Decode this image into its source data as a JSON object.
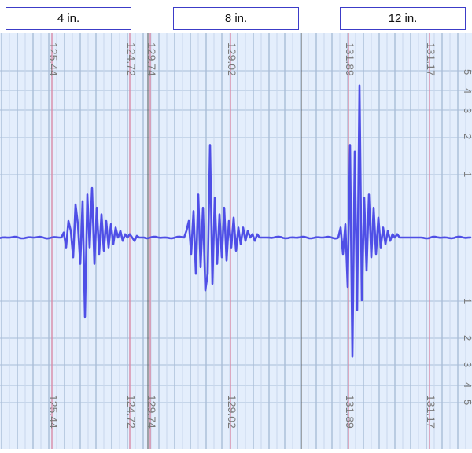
{
  "panel_labels": [
    "4 in.",
    "8 in.",
    "12 in."
  ],
  "colors": {
    "background": "#e4eefc",
    "major_grid": "#a9bdd8",
    "minor_grid": "#c8d6ec",
    "marker_line": "#d98aa6",
    "trace": "#4f4fe6",
    "tick_text": "#7a7a7a",
    "box_border": "#3c3cc8"
  },
  "chart_data": {
    "type": "line",
    "title": "",
    "xlabel": "",
    "ylabel": "",
    "right_axis_ticks": [
      "5",
      "4",
      "3",
      "2",
      "1",
      "1",
      "2",
      "3",
      "4",
      "5"
    ],
    "ylim": [
      -5.5,
      5.5
    ],
    "panels": [
      {
        "label": "4 in.",
        "marker_labels": [
          "125.44",
          "124.72"
        ],
        "pulse": {
          "x": [
            0,
            2,
            4,
            6,
            8,
            10,
            12,
            14,
            16,
            18,
            20,
            22,
            24,
            26,
            28,
            30,
            32,
            34,
            36,
            38,
            40,
            42,
            44,
            46,
            48,
            50,
            52,
            54,
            56,
            58,
            60,
            62,
            64,
            66,
            68,
            70
          ],
          "y": [
            0,
            0.15,
            -0.3,
            0.5,
            0.2,
            -0.6,
            1.0,
            0.4,
            -0.8,
            1.1,
            -2.4,
            1.3,
            -0.3,
            1.5,
            -0.8,
            0.9,
            -0.5,
            0.7,
            -0.4,
            0.5,
            -0.3,
            0.4,
            -0.2,
            0.3,
            0,
            0.2,
            -0.1,
            0.1,
            0,
            0.1,
            0,
            -0.1,
            0.05,
            0,
            0,
            0
          ]
        }
      },
      {
        "label": "8 in.",
        "marker_labels": [
          "129.74",
          "129.02"
        ],
        "pulse": {
          "x": [
            0,
            2,
            4,
            6,
            8,
            10,
            12,
            14,
            16,
            18,
            20,
            22,
            24,
            26,
            28,
            30,
            32,
            34,
            36,
            38,
            40,
            42,
            44,
            46,
            48,
            50,
            52,
            54,
            56,
            58,
            60,
            62,
            64,
            66,
            68,
            70
          ],
          "y": [
            0,
            0.2,
            0.5,
            -0.5,
            0.8,
            -1.1,
            1.3,
            -0.9,
            0.9,
            -1.6,
            -1.1,
            2.8,
            -1.4,
            1.2,
            -0.8,
            0.7,
            -0.6,
            0.9,
            -0.7,
            0.5,
            -0.3,
            0.6,
            -0.4,
            0.3,
            -0.2,
            0.3,
            -0.1,
            0.2,
            0,
            0.1,
            -0.1,
            0.1,
            0,
            0,
            0,
            0
          ]
        }
      },
      {
        "label": "12 in.",
        "marker_labels": [
          "131.89",
          "131.17"
        ],
        "pulse": {
          "x": [
            0,
            2,
            4,
            6,
            8,
            10,
            12,
            14,
            16,
            18,
            20,
            22,
            24,
            26,
            28,
            30,
            32,
            34,
            36,
            38,
            40,
            42,
            44,
            46,
            48,
            50,
            52,
            54,
            56,
            58,
            60,
            62,
            64,
            66,
            68,
            70
          ],
          "y": [
            0,
            0.3,
            -0.5,
            0.4,
            -1.5,
            2.8,
            -3.6,
            2.6,
            -2.2,
            4.6,
            -1.9,
            1.2,
            -1.0,
            1.3,
            -0.6,
            0.9,
            -0.5,
            0.6,
            -0.3,
            0.3,
            -0.2,
            0.2,
            -0.1,
            0.1,
            0,
            0.1,
            0,
            0,
            0,
            0,
            0,
            0,
            0,
            0,
            0,
            0
          ]
        }
      }
    ]
  }
}
